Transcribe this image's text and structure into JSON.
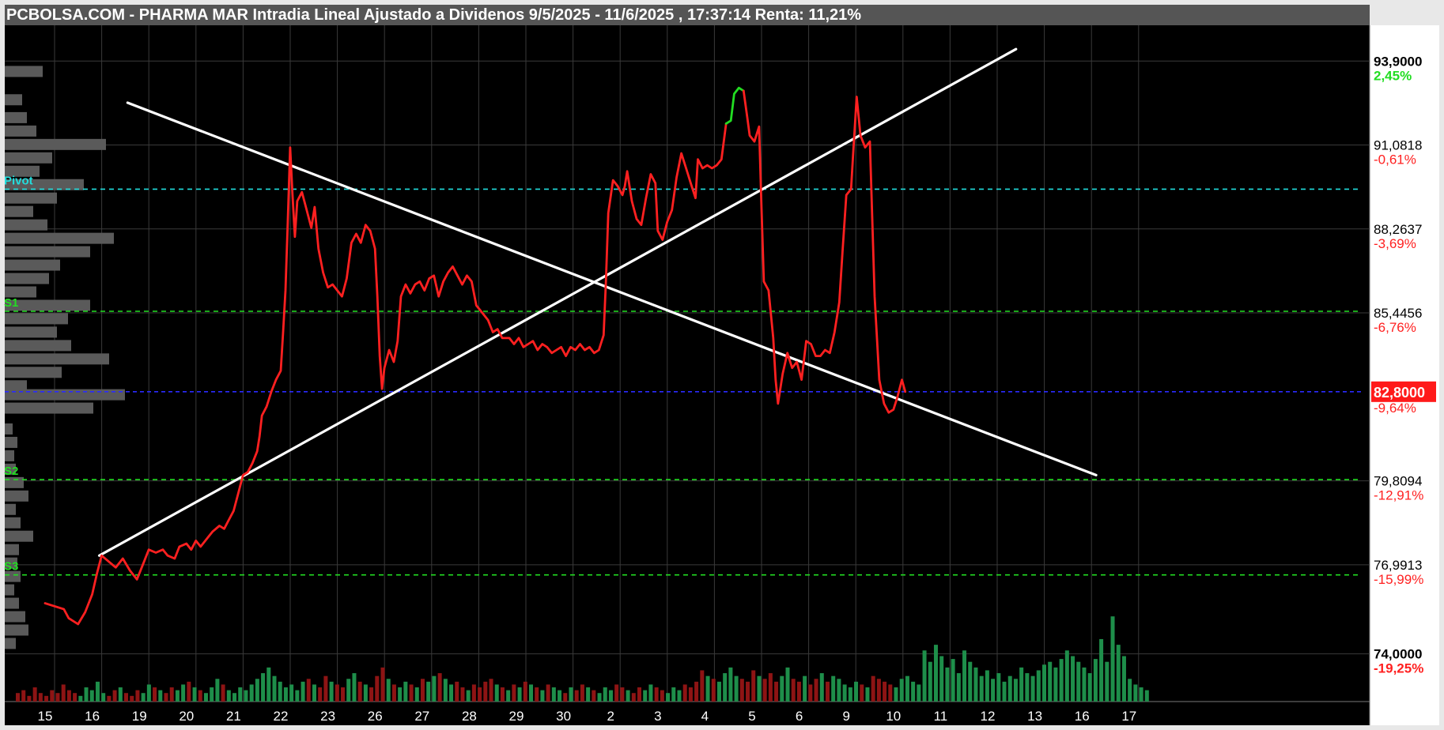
{
  "title": "PCBOLSA.COM - PHARMA MAR Intradia Lineal Ajustado a Dividenos 9/5/2025 - 11/6/2025 , 17:37:14 Renta: 11,21%",
  "colors": {
    "background": "#000000",
    "grid": "#3a3a3a",
    "price_down": "#ff2020",
    "price_up": "#22dd22",
    "trendline": "#ffffff",
    "pivot": "#22dddd",
    "support": "#22dd22",
    "current": "#2a2aff",
    "volume_up": "#1e8e4a",
    "volume_down": "#8e1414",
    "profile": "#5a5a5a"
  },
  "chart_data": {
    "type": "line",
    "ylim": [
      72.4,
      95.1
    ],
    "x_tick_labels": [
      "15",
      "16",
      "19",
      "20",
      "21",
      "22",
      "23",
      "26",
      "27",
      "28",
      "29",
      "30",
      "2",
      "3",
      "4",
      "5",
      "6",
      "9",
      "10",
      "11",
      "12",
      "13",
      "16",
      "17"
    ],
    "y_axis": [
      {
        "value": 93.9,
        "label": "93,9000",
        "pct": "2,45%",
        "pct_color": "#22dd22",
        "bold": true
      },
      {
        "value": 91.0818,
        "label": "91,0818",
        "pct": "-0,61%",
        "pct_color": "#ff2020",
        "bold": false
      },
      {
        "value": 88.2637,
        "label": "88,2637",
        "pct": "-3,69%",
        "pct_color": "#ff2020",
        "bold": false
      },
      {
        "value": 85.4456,
        "label": "85,4456",
        "pct": "-6,76%",
        "pct_color": "#ff2020",
        "bold": false
      },
      {
        "value": 82.8,
        "label": "82,8000",
        "pct": "-9,64%",
        "pct_color": "#ff2020",
        "bold": true,
        "current": true
      },
      {
        "value": 79.8094,
        "label": "79,8094",
        "pct": "-12,91%",
        "pct_color": "#ff2020",
        "bold": false
      },
      {
        "value": 76.9913,
        "label": "76,9913",
        "pct": "-15,99%",
        "pct_color": "#ff2020",
        "bold": false
      },
      {
        "value": 74.0,
        "label": "74,0000",
        "pct": "-19,25%",
        "pct_color": "#ff2020",
        "bold": true
      }
    ],
    "levels": [
      {
        "name": "Pivot",
        "value": 89.6,
        "color": "#22dddd"
      },
      {
        "name": "S1",
        "value": 85.5,
        "color": "#22dd22"
      },
      {
        "name": "S2",
        "value": 79.85,
        "color": "#22dd22"
      },
      {
        "name": "S3",
        "value": 76.65,
        "color": "#22dd22"
      }
    ],
    "current_price": 82.8,
    "price_series": [
      [
        0.0,
        75.7
      ],
      [
        0.2,
        75.6
      ],
      [
        0.4,
        75.5
      ],
      [
        0.5,
        75.2
      ],
      [
        0.7,
        75.0
      ],
      [
        0.85,
        75.4
      ],
      [
        1.0,
        76.0
      ],
      [
        1.1,
        76.7
      ],
      [
        1.2,
        77.3
      ],
      [
        1.35,
        77.1
      ],
      [
        1.5,
        76.9
      ],
      [
        1.65,
        77.2
      ],
      [
        1.8,
        76.8
      ],
      [
        1.95,
        76.5
      ],
      [
        2.1,
        77.1
      ],
      [
        2.2,
        77.5
      ],
      [
        2.35,
        77.4
      ],
      [
        2.5,
        77.5
      ],
      [
        2.6,
        77.3
      ],
      [
        2.75,
        77.2
      ],
      [
        2.85,
        77.6
      ],
      [
        3.0,
        77.7
      ],
      [
        3.1,
        77.5
      ],
      [
        3.2,
        77.8
      ],
      [
        3.3,
        77.6
      ],
      [
        3.45,
        77.9
      ],
      [
        3.55,
        78.1
      ],
      [
        3.7,
        78.3
      ],
      [
        3.8,
        78.2
      ],
      [
        3.9,
        78.5
      ],
      [
        4.0,
        78.8
      ],
      [
        4.1,
        79.4
      ],
      [
        4.2,
        80.0
      ],
      [
        4.3,
        80.1
      ],
      [
        4.4,
        80.4
      ],
      [
        4.5,
        80.8
      ],
      [
        4.55,
        81.3
      ],
      [
        4.6,
        82.0
      ],
      [
        4.7,
        82.3
      ],
      [
        4.8,
        82.8
      ],
      [
        4.9,
        83.2
      ],
      [
        5.0,
        83.5
      ],
      [
        5.05,
        84.8
      ],
      [
        5.1,
        86.2
      ],
      [
        5.15,
        88.5
      ],
      [
        5.2,
        91.0
      ],
      [
        5.25,
        89.4
      ],
      [
        5.3,
        88.0
      ],
      [
        5.35,
        89.2
      ],
      [
        5.45,
        89.5
      ],
      [
        5.55,
        88.9
      ],
      [
        5.65,
        88.3
      ],
      [
        5.72,
        89.0
      ],
      [
        5.8,
        87.6
      ],
      [
        5.9,
        86.8
      ],
      [
        6.0,
        86.3
      ],
      [
        6.1,
        86.4
      ],
      [
        6.2,
        86.2
      ],
      [
        6.3,
        86.0
      ],
      [
        6.4,
        86.6
      ],
      [
        6.5,
        87.8
      ],
      [
        6.6,
        88.1
      ],
      [
        6.7,
        87.8
      ],
      [
        6.8,
        88.4
      ],
      [
        6.9,
        88.2
      ],
      [
        7.0,
        87.6
      ],
      [
        7.05,
        86.0
      ],
      [
        7.1,
        84.0
      ],
      [
        7.15,
        82.9
      ],
      [
        7.2,
        83.6
      ],
      [
        7.3,
        84.2
      ],
      [
        7.4,
        83.8
      ],
      [
        7.48,
        84.5
      ],
      [
        7.55,
        86.0
      ],
      [
        7.65,
        86.4
      ],
      [
        7.75,
        86.1
      ],
      [
        7.85,
        86.4
      ],
      [
        7.95,
        86.5
      ],
      [
        8.05,
        86.2
      ],
      [
        8.15,
        86.6
      ],
      [
        8.25,
        86.7
      ],
      [
        8.35,
        86.0
      ],
      [
        8.45,
        86.5
      ],
      [
        8.55,
        86.8
      ],
      [
        8.65,
        87.0
      ],
      [
        8.75,
        86.7
      ],
      [
        8.85,
        86.4
      ],
      [
        8.95,
        86.7
      ],
      [
        9.05,
        86.5
      ],
      [
        9.15,
        85.7
      ],
      [
        9.3,
        85.4
      ],
      [
        9.4,
        85.2
      ],
      [
        9.5,
        84.8
      ],
      [
        9.6,
        84.9
      ],
      [
        9.7,
        84.6
      ],
      [
        9.85,
        84.6
      ],
      [
        9.95,
        84.4
      ],
      [
        10.05,
        84.6
      ],
      [
        10.15,
        84.3
      ],
      [
        10.25,
        84.4
      ],
      [
        10.35,
        84.5
      ],
      [
        10.45,
        84.2
      ],
      [
        10.55,
        84.4
      ],
      [
        10.65,
        84.3
      ],
      [
        10.75,
        84.1
      ],
      [
        10.85,
        84.2
      ],
      [
        10.95,
        84.3
      ],
      [
        11.05,
        84.0
      ],
      [
        11.15,
        84.3
      ],
      [
        11.25,
        84.2
      ],
      [
        11.35,
        84.4
      ],
      [
        11.45,
        84.2
      ],
      [
        11.55,
        84.3
      ],
      [
        11.65,
        84.1
      ],
      [
        11.75,
        84.2
      ],
      [
        11.85,
        84.7
      ],
      [
        11.9,
        86.5
      ],
      [
        11.95,
        88.8
      ],
      [
        12.05,
        89.9
      ],
      [
        12.15,
        89.7
      ],
      [
        12.25,
        89.4
      ],
      [
        12.3,
        89.7
      ],
      [
        12.35,
        90.2
      ],
      [
        12.45,
        89.2
      ],
      [
        12.55,
        88.6
      ],
      [
        12.65,
        88.4
      ],
      [
        12.75,
        89.3
      ],
      [
        12.85,
        90.1
      ],
      [
        12.95,
        89.8
      ],
      [
        13.0,
        88.2
      ],
      [
        13.1,
        87.9
      ],
      [
        13.2,
        88.5
      ],
      [
        13.3,
        88.9
      ],
      [
        13.4,
        90.0
      ],
      [
        13.5,
        90.8
      ],
      [
        13.6,
        90.3
      ],
      [
        13.7,
        89.8
      ],
      [
        13.8,
        89.3
      ],
      [
        13.85,
        90.6
      ],
      [
        13.95,
        90.3
      ],
      [
        14.05,
        90.4
      ],
      [
        14.15,
        90.3
      ],
      [
        14.25,
        90.4
      ],
      [
        14.35,
        90.6
      ],
      [
        14.45,
        91.8
      ],
      [
        14.55,
        91.9
      ],
      [
        14.62,
        92.8
      ],
      [
        14.72,
        93.0
      ],
      [
        14.82,
        92.9
      ],
      [
        14.9,
        92.0
      ],
      [
        14.95,
        91.4
      ],
      [
        15.05,
        91.2
      ],
      [
        15.15,
        91.7
      ],
      [
        15.2,
        89.0
      ],
      [
        15.25,
        86.5
      ],
      [
        15.35,
        86.2
      ],
      [
        15.45,
        84.6
      ],
      [
        15.5,
        83.2
      ],
      [
        15.55,
        82.4
      ],
      [
        15.65,
        83.4
      ],
      [
        15.75,
        84.1
      ],
      [
        15.85,
        83.6
      ],
      [
        15.95,
        83.8
      ],
      [
        16.05,
        83.2
      ],
      [
        16.15,
        84.5
      ],
      [
        16.25,
        84.4
      ],
      [
        16.35,
        84.0
      ],
      [
        16.45,
        84.0
      ],
      [
        16.55,
        84.2
      ],
      [
        16.65,
        84.1
      ],
      [
        16.75,
        84.8
      ],
      [
        16.85,
        85.8
      ],
      [
        16.92,
        87.5
      ],
      [
        17.0,
        89.4
      ],
      [
        17.1,
        89.6
      ],
      [
        17.15,
        90.9
      ],
      [
        17.22,
        92.7
      ],
      [
        17.3,
        91.4
      ],
      [
        17.4,
        91.0
      ],
      [
        17.5,
        91.2
      ],
      [
        17.55,
        88.6
      ],
      [
        17.6,
        86.0
      ],
      [
        17.7,
        83.2
      ],
      [
        17.8,
        82.4
      ],
      [
        17.9,
        82.1
      ],
      [
        18.0,
        82.2
      ],
      [
        18.08,
        82.6
      ],
      [
        18.18,
        83.2
      ],
      [
        18.25,
        82.8
      ]
    ],
    "trendlines": [
      {
        "name": "descending",
        "x1": 1.75,
        "y1": 92.5,
        "x2": 22.3,
        "y2": 80.0
      },
      {
        "name": "ascending",
        "x1": 1.15,
        "y1": 77.3,
        "x2": 20.6,
        "y2": 94.3
      }
    ],
    "volume": [
      3,
      4,
      2,
      5,
      3,
      2,
      4,
      3,
      6,
      4,
      3,
      2,
      5,
      4,
      7,
      3,
      2,
      4,
      5,
      3,
      2,
      4,
      3,
      6,
      5,
      4,
      3,
      5,
      4,
      6,
      7,
      5,
      4,
      3,
      5,
      8,
      6,
      4,
      3,
      5,
      4,
      6,
      8,
      10,
      12,
      9,
      7,
      5,
      6,
      4,
      7,
      8,
      6,
      5,
      9,
      7,
      6,
      5,
      8,
      10,
      7,
      6,
      5,
      9,
      12,
      8,
      6,
      5,
      7,
      6,
      5,
      8,
      7,
      9,
      10,
      8,
      6,
      7,
      5,
      4,
      6,
      5,
      7,
      8,
      6,
      5,
      4,
      6,
      5,
      7,
      6,
      5,
      4,
      6,
      5,
      4,
      3,
      5,
      4,
      6,
      5,
      4,
      3,
      5,
      4,
      6,
      5,
      4,
      3,
      5,
      4,
      6,
      5,
      4,
      3,
      5,
      4,
      6,
      5,
      7,
      11,
      9,
      8,
      7,
      10,
      12,
      9,
      8,
      7,
      11,
      9,
      8,
      10,
      7,
      9,
      12,
      8,
      7,
      9,
      6,
      8,
      10,
      7,
      9,
      8,
      6,
      5,
      7,
      6,
      5,
      9,
      8,
      7,
      6,
      5,
      8,
      9,
      7,
      6,
      18,
      14,
      20,
      16,
      12,
      15,
      10,
      18,
      14,
      12,
      9,
      11,
      8,
      10,
      7,
      9,
      8,
      12,
      10,
      9,
      11,
      13,
      14,
      12,
      15,
      18,
      16,
      14,
      12,
      10,
      15,
      22,
      14,
      30,
      20,
      16,
      8,
      6,
      5,
      4
    ],
    "volume_profile": [
      {
        "price": 93.55,
        "width": 48
      },
      {
        "price": 92.6,
        "width": 22
      },
      {
        "price": 92.0,
        "width": 28
      },
      {
        "price": 91.55,
        "width": 40
      },
      {
        "price": 91.1,
        "width": 128
      },
      {
        "price": 90.65,
        "width": 60
      },
      {
        "price": 90.2,
        "width": 44
      },
      {
        "price": 89.75,
        "width": 100
      },
      {
        "price": 89.3,
        "width": 66
      },
      {
        "price": 88.85,
        "width": 36
      },
      {
        "price": 88.4,
        "width": 54
      },
      {
        "price": 87.95,
        "width": 138
      },
      {
        "price": 87.5,
        "width": 108
      },
      {
        "price": 87.05,
        "width": 70
      },
      {
        "price": 86.6,
        "width": 56
      },
      {
        "price": 86.15,
        "width": 40
      },
      {
        "price": 85.7,
        "width": 108
      },
      {
        "price": 85.25,
        "width": 80
      },
      {
        "price": 84.8,
        "width": 66
      },
      {
        "price": 84.35,
        "width": 84
      },
      {
        "price": 83.9,
        "width": 132
      },
      {
        "price": 83.45,
        "width": 72
      },
      {
        "price": 83.0,
        "width": 28
      },
      {
        "price": 82.7,
        "width": 152
      },
      {
        "price": 82.25,
        "width": 112
      },
      {
        "price": 81.55,
        "width": 10
      },
      {
        "price": 81.1,
        "width": 16
      },
      {
        "price": 80.65,
        "width": 12
      },
      {
        "price": 80.2,
        "width": 14
      },
      {
        "price": 79.75,
        "width": 24
      },
      {
        "price": 79.3,
        "width": 30
      },
      {
        "price": 78.85,
        "width": 14
      },
      {
        "price": 78.4,
        "width": 20
      },
      {
        "price": 77.95,
        "width": 36
      },
      {
        "price": 77.5,
        "width": 18
      },
      {
        "price": 77.05,
        "width": 16
      },
      {
        "price": 76.6,
        "width": 20
      },
      {
        "price": 76.15,
        "width": 12
      },
      {
        "price": 75.7,
        "width": 18
      },
      {
        "price": 75.25,
        "width": 26
      },
      {
        "price": 74.8,
        "width": 30
      },
      {
        "price": 74.35,
        "width": 14
      }
    ]
  }
}
